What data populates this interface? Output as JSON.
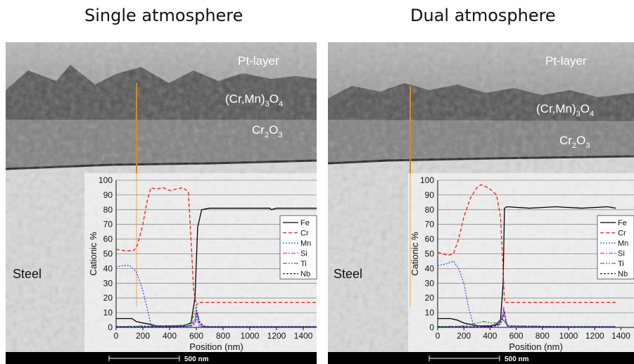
{
  "panels": [
    {
      "title": "Single atmosphere",
      "labels": {
        "pt_layer": "Pt-layer",
        "spinel": {
          "base": "(Cr,Mn)",
          "sub1": "3",
          "mid": "O",
          "sub2": "4"
        },
        "chromia": {
          "base": "Cr",
          "sub1": "2",
          "mid": "O",
          "sub2": "3"
        },
        "steel": "Steel",
        "scale_bar": "500 nm"
      }
    },
    {
      "title": "Dual atmosphere",
      "labels": {
        "pt_layer": "Pt-layer",
        "spinel": {
          "base": "(Cr,Mn)",
          "sub1": "3",
          "mid": "O",
          "sub2": "4"
        },
        "chromia": {
          "base": "Cr",
          "sub1": "2",
          "mid": "O",
          "sub2": "3"
        },
        "steel": "Steel",
        "scale_bar": "500 nm"
      }
    }
  ],
  "colors": {
    "line_scan": "#d08a2a",
    "Fe": "#000000",
    "Cr": "#e8221c",
    "Mn": "#3a57d6",
    "Si": "#d62ad6",
    "Ti": "#2e9a2e",
    "Nb": "#1a1a8c"
  },
  "chart_data": [
    {
      "type": "line",
      "xlabel": "Position (nm)",
      "ylabel": "Cationic %",
      "xlim": [
        0,
        1500
      ],
      "ylim": [
        0,
        100
      ],
      "xticks": [
        0,
        200,
        400,
        600,
        800,
        1000,
        1200,
        1400
      ],
      "yticks": [
        0,
        10,
        20,
        30,
        40,
        50,
        60,
        70,
        80,
        90,
        100
      ],
      "grid": true,
      "legend_position": "right",
      "series": [
        {
          "name": "Fe",
          "x": [
            0,
            80,
            120,
            150,
            200,
            260,
            300,
            400,
            500,
            560,
            590,
            610,
            640,
            700,
            800,
            1000,
            1150,
            1160,
            1200,
            1400,
            1500
          ],
          "y": [
            6,
            6,
            6,
            4,
            3,
            2,
            1,
            1,
            1,
            3,
            20,
            68,
            80,
            81,
            81,
            81,
            81,
            80,
            81,
            81,
            81
          ]
        },
        {
          "name": "Cr",
          "x": [
            0,
            80,
            130,
            160,
            200,
            230,
            260,
            300,
            350,
            400,
            450,
            500,
            540,
            560,
            580,
            600,
            620,
            700,
            900,
            1200,
            1500
          ],
          "y": [
            53,
            52,
            52,
            56,
            70,
            85,
            95,
            94,
            95,
            93,
            94,
            95,
            92,
            60,
            25,
            15,
            17,
            17,
            17,
            17,
            17
          ]
        },
        {
          "name": "Mn",
          "x": [
            0,
            50,
            100,
            150,
            200,
            240,
            260,
            280,
            300,
            400,
            500,
            560,
            590,
            610,
            620,
            700,
            900,
            1200,
            1500
          ],
          "y": [
            41,
            42,
            42,
            38,
            25,
            10,
            2,
            1,
            0.5,
            0.5,
            0.5,
            1,
            2,
            8,
            1,
            0.5,
            0.5,
            0.5,
            0.5
          ]
        },
        {
          "name": "Si",
          "x": [
            0,
            200,
            400,
            550,
            590,
            600,
            615,
            640,
            700,
            1000,
            1500
          ],
          "y": [
            0.5,
            0.5,
            0.5,
            1,
            6,
            12,
            3,
            0.5,
            0.5,
            0.5,
            0.5
          ]
        },
        {
          "name": "Ti",
          "x": [
            0,
            200,
            400,
            550,
            580,
            600,
            620,
            650,
            700,
            1000,
            1500
          ],
          "y": [
            0.5,
            1,
            1,
            2,
            8,
            14,
            5,
            1,
            0.5,
            0.5,
            0.5
          ]
        },
        {
          "name": "Nb",
          "x": [
            0,
            200,
            400,
            560,
            590,
            605,
            625,
            660,
            700,
            1000,
            1500
          ],
          "y": [
            0.5,
            0.5,
            0.5,
            1,
            4,
            10,
            3,
            0.5,
            0.5,
            0.5,
            0.5
          ]
        }
      ]
    },
    {
      "type": "line",
      "xlabel": "Position (nm)",
      "ylabel": "Cationic %",
      "xlim": [
        0,
        1500
      ],
      "ylim": [
        0,
        100
      ],
      "xticks": [
        0,
        200,
        400,
        600,
        800,
        1000,
        1200,
        1400
      ],
      "yticks": [
        0,
        10,
        20,
        30,
        40,
        50,
        60,
        70,
        80,
        90,
        100
      ],
      "grid": true,
      "legend_position": "right",
      "series": [
        {
          "name": "Fe",
          "x": [
            0,
            100,
            150,
            200,
            250,
            300,
            400,
            450,
            480,
            500,
            510,
            530,
            700,
            900,
            1100,
            1300,
            1360
          ],
          "y": [
            6,
            6,
            5,
            3,
            2,
            1,
            1,
            2,
            5,
            30,
            81,
            82,
            81,
            82,
            81,
            82,
            81
          ]
        },
        {
          "name": "Cr",
          "x": [
            0,
            80,
            120,
            160,
            200,
            250,
            300,
            330,
            360,
            400,
            450,
            480,
            500,
            510,
            530,
            700,
            900,
            1100,
            1360
          ],
          "y": [
            51,
            49,
            50,
            60,
            75,
            88,
            95,
            97,
            96,
            94,
            90,
            75,
            40,
            17,
            17,
            17,
            17,
            17,
            17
          ]
        },
        {
          "name": "Mn",
          "x": [
            0,
            60,
            120,
            160,
            200,
            240,
            270,
            300,
            400,
            470,
            495,
            505,
            530,
            700,
            1000,
            1360
          ],
          "y": [
            42,
            43,
            45,
            40,
            30,
            12,
            3,
            1,
            0.5,
            1,
            5,
            12,
            1,
            0.5,
            0.5,
            0.5
          ]
        },
        {
          "name": "Si",
          "x": [
            0,
            200,
            400,
            470,
            495,
            505,
            520,
            550,
            1000,
            1360
          ],
          "y": [
            0.5,
            0.5,
            0.5,
            2,
            8,
            14,
            3,
            0.5,
            0.5,
            0.5
          ]
        },
        {
          "name": "Ti",
          "x": [
            0,
            200,
            300,
            350,
            400,
            450,
            490,
            510,
            540,
            1000,
            1360
          ],
          "y": [
            0.5,
            1,
            3,
            4,
            3,
            3,
            6,
            4,
            1,
            0.5,
            0.5
          ]
        },
        {
          "name": "Nb",
          "x": [
            0,
            200,
            400,
            470,
            495,
            510,
            530,
            1000,
            1360
          ],
          "y": [
            0.5,
            0.5,
            0.5,
            2,
            6,
            10,
            1,
            0.5,
            0.5
          ]
        }
      ]
    }
  ]
}
